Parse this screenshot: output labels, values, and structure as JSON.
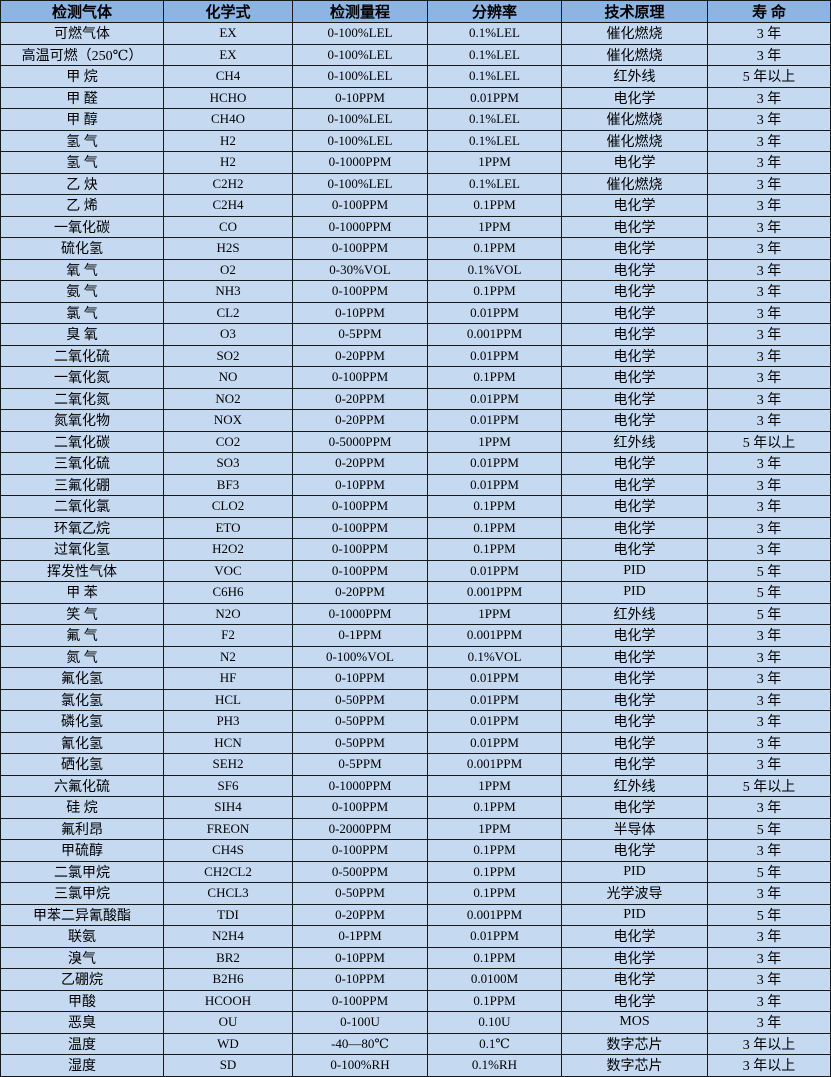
{
  "colors": {
    "header_bg": "#8db4e2",
    "row_bg": "#c5d9f1",
    "border": "#1a1a1a"
  },
  "headers": [
    "检测气体",
    "化学式",
    "检测量程",
    "分辨率",
    "技术原理",
    "寿  命"
  ],
  "rows": [
    [
      "可燃气体",
      "EX",
      "0-100%LEL",
      "0.1%LEL",
      "催化燃烧",
      "3 年"
    ],
    [
      "高温可燃（250℃）",
      "EX",
      "0-100%LEL",
      "0.1%LEL",
      "催化燃烧",
      "3 年"
    ],
    [
      "甲 烷",
      "CH4",
      "0-100%LEL",
      "0.1%LEL",
      "红外线",
      "5 年以上"
    ],
    [
      "甲 醛",
      "HCHO",
      "0-10PPM",
      "0.01PPM",
      "电化学",
      "3 年"
    ],
    [
      "甲 醇",
      "CH4O",
      "0-100%LEL",
      "0.1%LEL",
      "催化燃烧",
      "3 年"
    ],
    [
      "氢 气",
      "H2",
      "0-100%LEL",
      "0.1%LEL",
      "催化燃烧",
      "3 年"
    ],
    [
      "氢 气",
      "H2",
      "0-1000PPM",
      "1PPM",
      "电化学",
      "3 年"
    ],
    [
      "乙 炔",
      "C2H2",
      "0-100%LEL",
      "0.1%LEL",
      "催化燃烧",
      "3 年"
    ],
    [
      "乙 烯",
      "C2H4",
      "0-100PPM",
      "0.1PPM",
      "电化学",
      "3 年"
    ],
    [
      "一氧化碳",
      "CO",
      "0-1000PPM",
      "1PPM",
      "电化学",
      "3 年"
    ],
    [
      "硫化氢",
      "H2S",
      "0-100PPM",
      "0.1PPM",
      "电化学",
      "3 年"
    ],
    [
      "氧 气",
      "O2",
      "0-30%VOL",
      "0.1%VOL",
      "电化学",
      "3 年"
    ],
    [
      "氨 气",
      "NH3",
      "0-100PPM",
      "0.1PPM",
      "电化学",
      "3 年"
    ],
    [
      "氯 气",
      "CL2",
      "0-10PPM",
      "0.01PPM",
      "电化学",
      "3 年"
    ],
    [
      "臭 氧",
      "O3",
      "0-5PPM",
      "0.001PPM",
      "电化学",
      "3 年"
    ],
    [
      "二氧化硫",
      "SO2",
      "0-20PPM",
      "0.01PPM",
      "电化学",
      "3 年"
    ],
    [
      "一氧化氮",
      "NO",
      "0-100PPM",
      "0.1PPM",
      "电化学",
      "3 年"
    ],
    [
      "二氧化氮",
      "NO2",
      "0-20PPM",
      "0.01PPM",
      "电化学",
      "3 年"
    ],
    [
      "氮氧化物",
      "NOX",
      "0-20PPM",
      "0.01PPM",
      "电化学",
      "3 年"
    ],
    [
      "二氧化碳",
      "CO2",
      "0-5000PPM",
      "1PPM",
      "红外线",
      "5 年以上"
    ],
    [
      "三氧化硫",
      "SO3",
      "0-20PPM",
      "0.01PPM",
      "电化学",
      "3 年"
    ],
    [
      "三氟化硼",
      "BF3",
      "0-10PPM",
      "0.01PPM",
      "电化学",
      "3 年"
    ],
    [
      "二氧化氯",
      "CLO2",
      "0-100PPM",
      "0.1PPM",
      "电化学",
      "3 年"
    ],
    [
      "环氧乙烷",
      "ETO",
      "0-100PPM",
      "0.1PPM",
      "电化学",
      "3 年"
    ],
    [
      "过氧化氢",
      "H2O2",
      "0-100PPM",
      "0.1PPM",
      "电化学",
      "3 年"
    ],
    [
      "挥发性气体",
      "VOC",
      "0-100PPM",
      "0.01PPM",
      "PID",
      "5 年"
    ],
    [
      "甲 苯",
      "C6H6",
      "0-20PPM",
      "0.001PPM",
      "PID",
      "5 年"
    ],
    [
      "笑 气",
      "N2O",
      "0-1000PPM",
      "1PPM",
      "红外线",
      "5 年"
    ],
    [
      "氟 气",
      "F2",
      "0-1PPM",
      "0.001PPM",
      "电化学",
      "3 年"
    ],
    [
      "氮 气",
      "N2",
      "0-100%VOL",
      "0.1%VOL",
      "电化学",
      "3 年"
    ],
    [
      "氟化氢",
      "HF",
      "0-10PPM",
      "0.01PPM",
      "电化学",
      "3 年"
    ],
    [
      "氯化氢",
      "HCL",
      "0-50PPM",
      "0.01PPM",
      "电化学",
      "3 年"
    ],
    [
      "磷化氢",
      "PH3",
      "0-50PPM",
      "0.01PPM",
      "电化学",
      "3 年"
    ],
    [
      "氰化氢",
      "HCN",
      "0-50PPM",
      "0.01PPM",
      "电化学",
      "3 年"
    ],
    [
      "硒化氢",
      "SEH2",
      "0-5PPM",
      "0.001PPM",
      "电化学",
      "3 年"
    ],
    [
      "六氟化硫",
      "SF6",
      "0-1000PPM",
      "1PPM",
      "红外线",
      "5 年以上"
    ],
    [
      "硅 烷",
      "SIH4",
      "0-100PPM",
      "0.1PPM",
      "电化学",
      "3 年"
    ],
    [
      "氟利昂",
      "FREON",
      "0-2000PPM",
      "1PPM",
      "半导体",
      "5 年"
    ],
    [
      "甲硫醇",
      "CH4S",
      "0-100PPM",
      "0.1PPM",
      "电化学",
      "3 年"
    ],
    [
      "二氯甲烷",
      "CH2CL2",
      "0-500PPM",
      "0.1PPM",
      "PID",
      "5 年"
    ],
    [
      "三氯甲烷",
      "CHCL3",
      "0-50PPM",
      "0.1PPM",
      "光学波导",
      "3 年"
    ],
    [
      "甲苯二异氰酸酯",
      "TDI",
      "0-20PPM",
      "0.001PPM",
      "PID",
      "5 年"
    ],
    [
      "联氨",
      "N2H4",
      "0-1PPM",
      "0.01PPM",
      "电化学",
      "3 年"
    ],
    [
      "溴气",
      "BR2",
      "0-10PPM",
      "0.1PPM",
      "电化学",
      "3 年"
    ],
    [
      "乙硼烷",
      "B2H6",
      "0-10PPM",
      "0.0100M",
      "电化学",
      "3 年"
    ],
    [
      "甲酸",
      "HCOOH",
      "0-100PPM",
      "0.1PPM",
      "电化学",
      "3 年"
    ],
    [
      "恶臭",
      "OU",
      "0-100U",
      "0.10U",
      "MOS",
      "3 年"
    ],
    [
      "温度",
      "WD",
      "-40—80℃",
      "0.1℃",
      "数字芯片",
      "3 年以上"
    ],
    [
      "湿度",
      "SD",
      "0-100%RH",
      "0.1%RH",
      "数字芯片",
      "3 年以上"
    ]
  ]
}
